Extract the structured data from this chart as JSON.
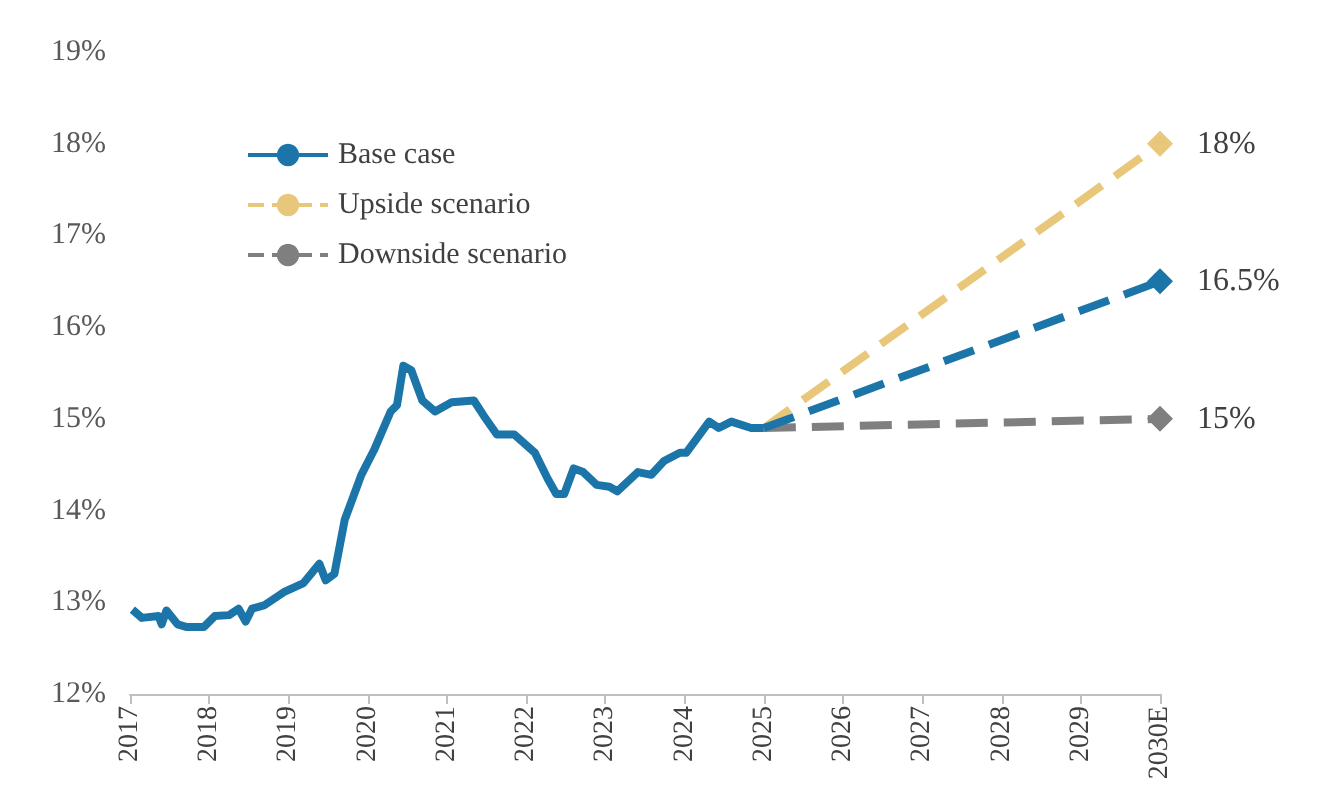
{
  "chart_data": {
    "type": "line",
    "xlim": [
      2017,
      2030
    ],
    "xticks": [
      2017,
      2018,
      2019,
      2020,
      2021,
      2022,
      2023,
      2024,
      2025,
      2026,
      2027,
      2028,
      2029,
      {
        "value": 2030,
        "label": "2030E"
      }
    ],
    "ylim": [
      12,
      19
    ],
    "yticks": [
      {
        "value": 12,
        "label": "12%"
      },
      {
        "value": 13,
        "label": "13%"
      },
      {
        "value": 14,
        "label": "14%"
      },
      {
        "value": 15,
        "label": "15%"
      },
      {
        "value": 16,
        "label": "16%"
      },
      {
        "value": 17,
        "label": "17%"
      },
      {
        "value": 18,
        "label": "18%"
      },
      {
        "value": 19,
        "label": "19%"
      }
    ],
    "grid": false,
    "legend": "top left",
    "series": [
      {
        "name": "Base case",
        "color": "#1b75a8",
        "line_style": "solid",
        "marker": "none",
        "x": [
          2017.03,
          2017.15,
          2017.36,
          2017.4,
          2017.46,
          2017.6,
          2017.72,
          2017.93,
          2018.07,
          2018.25,
          2018.37,
          2018.46,
          2018.54,
          2018.7,
          2018.94,
          2019.19,
          2019.39,
          2019.47,
          2019.58,
          2019.71,
          2019.92,
          2020.08,
          2020.29,
          2020.37,
          2020.45,
          2020.55,
          2020.69,
          2020.85,
          2021.06,
          2021.34,
          2021.46,
          2021.63,
          2021.85,
          2022.11,
          2022.27,
          2022.38,
          2022.48,
          2022.6,
          2022.72,
          2022.89,
          2023.05,
          2023.15,
          2023.41,
          2023.58,
          2023.74,
          2023.94,
          2024.02,
          2024.31,
          2024.43,
          2024.59,
          2024.84,
          2025
        ],
        "values": [
          12.92,
          12.83,
          12.85,
          12.76,
          12.91,
          12.76,
          12.73,
          12.73,
          12.85,
          12.86,
          12.93,
          12.79,
          12.93,
          12.97,
          13.11,
          13.21,
          13.42,
          13.24,
          13.31,
          13.9,
          14.39,
          14.66,
          15.08,
          15.15,
          15.58,
          15.53,
          15.2,
          15.08,
          15.18,
          15.2,
          15.04,
          14.83,
          14.83,
          14.63,
          14.35,
          14.18,
          14.18,
          14.46,
          14.42,
          14.28,
          14.26,
          14.21,
          14.42,
          14.39,
          14.54,
          14.63,
          14.63,
          14.97,
          14.9,
          14.97,
          14.9,
          14.9
        ]
      },
      {
        "name": "Upside scenario",
        "color": "#e8c77a",
        "line_style": "dashed",
        "marker": "diamond",
        "x": [
          2025,
          2030
        ],
        "values": [
          14.9,
          18
        ],
        "value_labels": [
          null,
          "18%"
        ]
      },
      {
        "name": "Downside scenario",
        "color": "#7f7f7f",
        "line_style": "dashed",
        "marker": "diamond",
        "x": [
          2025,
          2030
        ],
        "values": [
          14.9,
          15
        ],
        "value_labels": [
          null,
          "15%"
        ]
      },
      {
        "color": "#1b75a8",
        "line_style": "dashed",
        "marker": "diamond",
        "x": [
          2025,
          2030
        ],
        "values": [
          14.9,
          16.5
        ],
        "value_labels": [
          null,
          "16.5%"
        ]
      }
    ]
  }
}
